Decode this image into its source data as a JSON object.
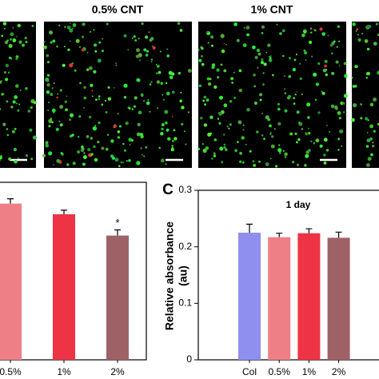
{
  "images": {
    "labels": [
      "0.5% CNT",
      "1% CNT"
    ]
  },
  "chart_data": [
    {
      "type": "bar",
      "categories": [
        "0.5%",
        "1%",
        "2%"
      ],
      "values": [
        0.88,
        0.82,
        0.7
      ],
      "errors": [
        0.027,
        0.023,
        0.032
      ],
      "colors": [
        "#ef7f86",
        "#ee3344",
        "#9e6266"
      ],
      "ylim": [
        0,
        1
      ],
      "annotations": [
        {
          "category": "2%",
          "text": "*"
        }
      ]
    },
    {
      "type": "bar",
      "panel": "C",
      "title": "1 day",
      "ylabel": [
        "Relative absorbance",
        "(au)"
      ],
      "categories": [
        "Col",
        "0.5%",
        "1%",
        "2%"
      ],
      "values": [
        0.225,
        0.217,
        0.224,
        0.216
      ],
      "errors": [
        0.015,
        0.007,
        0.008,
        0.01
      ],
      "colors": [
        "#8f8fef",
        "#ef7f86",
        "#ee3344",
        "#9e6266"
      ],
      "ylim": [
        0,
        0.3
      ],
      "yticks": [
        0,
        0.1,
        0.2,
        0.3
      ]
    }
  ]
}
